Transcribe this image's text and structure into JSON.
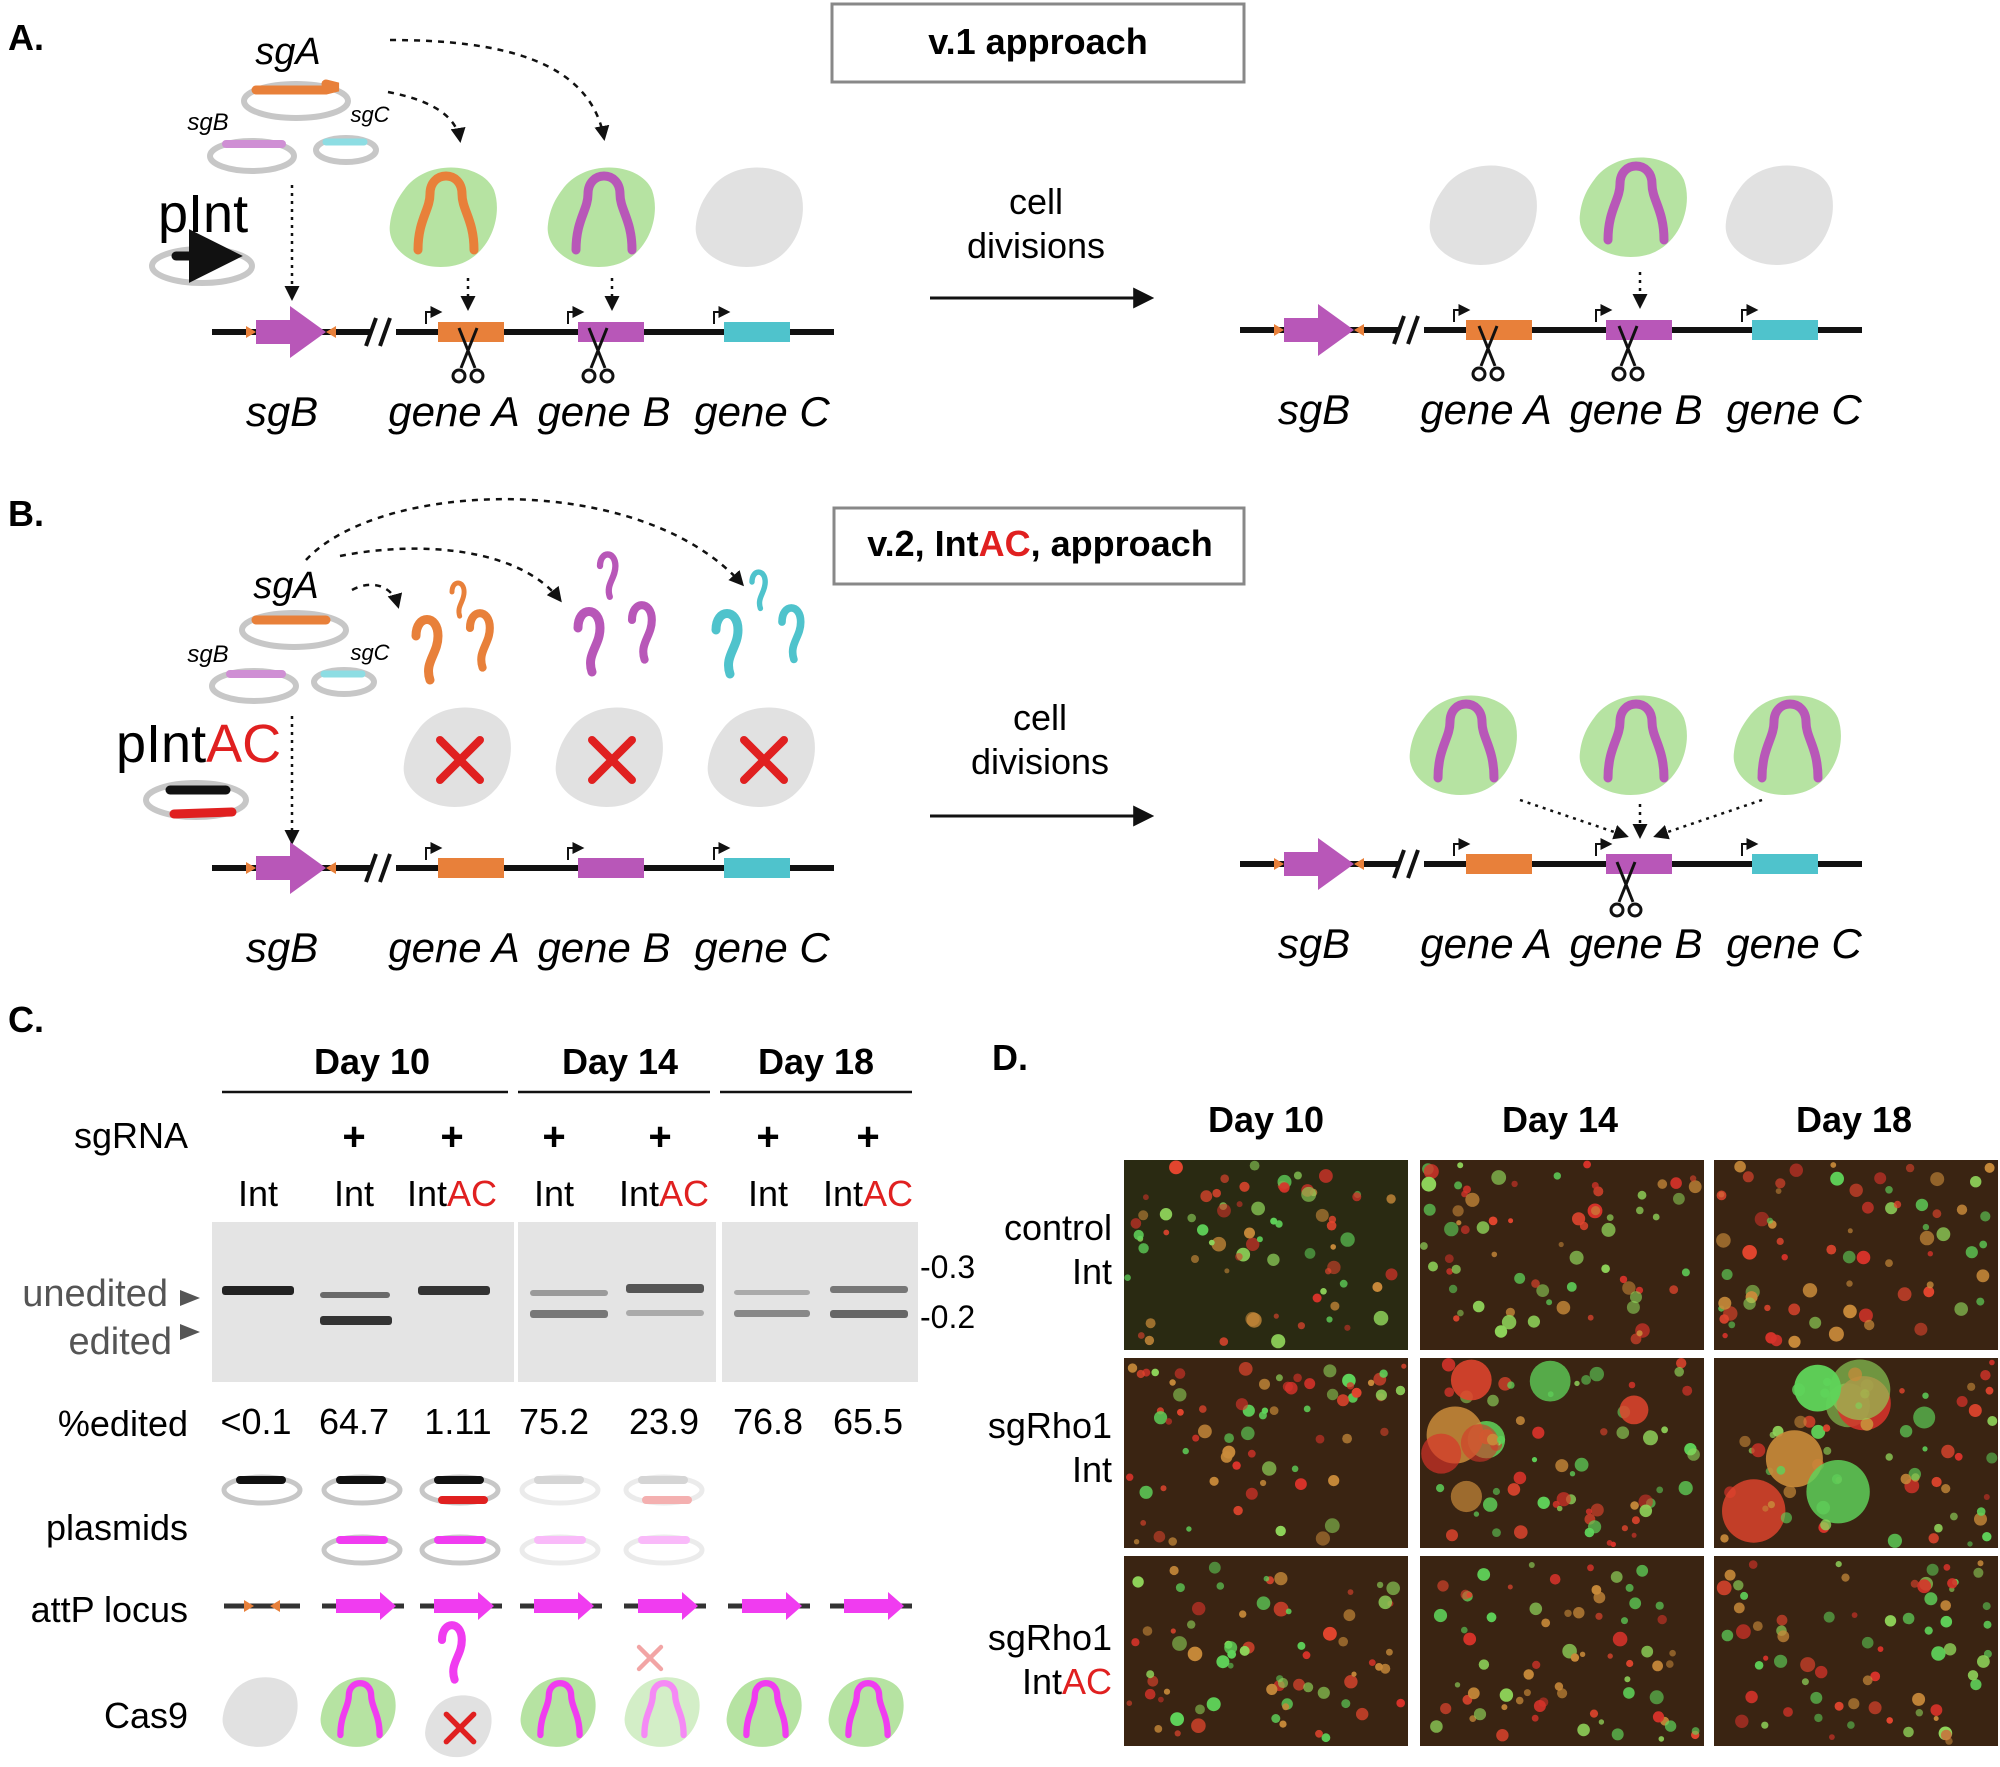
{
  "panels": {
    "A": {
      "letter": "A.",
      "approach": "v.1 approach",
      "sg_labels": {
        "sgA": "sgA",
        "sgB": "sgB",
        "sgC": "sgC"
      },
      "plasmid": "pInt",
      "arrow_label": [
        "cell",
        "divisions"
      ],
      "loci": {
        "sgB": "sgB",
        "geneA": "gene A",
        "geneB": "gene B",
        "geneC": "gene C"
      }
    },
    "B": {
      "letter": "B.",
      "approach_pre": "v.2, Int",
      "approach_red": "AC",
      "approach_post": ", approach",
      "sg_labels": {
        "sgA": "sgA",
        "sgB": "sgB",
        "sgC": "sgC"
      },
      "plasmid_pre": "pInt",
      "plasmid_red": "AC",
      "arrow_label": [
        "cell",
        "divisions"
      ],
      "loci": {
        "sgB": "sgB",
        "geneA": "gene A",
        "geneB": "gene B",
        "geneC": "gene C"
      }
    },
    "C": {
      "letter": "C.",
      "days": [
        "Day 10",
        "Day 14",
        "Day 18"
      ],
      "row_sgrna": "sgRNA",
      "plus": "+",
      "lanes": [
        {
          "pre": "Int",
          "red": ""
        },
        {
          "pre": "Int",
          "red": ""
        },
        {
          "pre": "Int",
          "red": "AC"
        },
        {
          "pre": "Int",
          "red": ""
        },
        {
          "pre": "Int",
          "red": "AC"
        },
        {
          "pre": "Int",
          "red": ""
        },
        {
          "pre": "Int",
          "red": "AC"
        }
      ],
      "band_unedited": "unedited",
      "band_edited": "edited",
      "size_marks": [
        "-0.3",
        "-0.2"
      ],
      "row_edited": "%edited",
      "percent_edited": [
        "<0.1",
        "64.7",
        "1.11",
        "75.2",
        "23.9",
        "76.8",
        "65.5"
      ],
      "row_plasmids": "plasmids",
      "row_attp": "attP locus",
      "row_cas9": "Cas9"
    },
    "D": {
      "letter": "D.",
      "days": [
        "Day 10",
        "Day 14",
        "Day 18"
      ],
      "rows": [
        {
          "line1": "control",
          "line2_pre": "Int",
          "line2_red": ""
        },
        {
          "line1": "sgRho1",
          "line2_pre": "Int",
          "line2_red": ""
        },
        {
          "line1": "sgRho1",
          "line2_pre": "Int",
          "line2_red": "AC"
        }
      ]
    }
  },
  "colors": {
    "orange": "#e8803a",
    "purple": "#b857b8",
    "cyan": "#4fc3cc",
    "magenta": "#f03cf0",
    "red": "#e02020",
    "cas9_active": "#b6e3a2",
    "cas9_inactive": "#e1e1e1"
  }
}
